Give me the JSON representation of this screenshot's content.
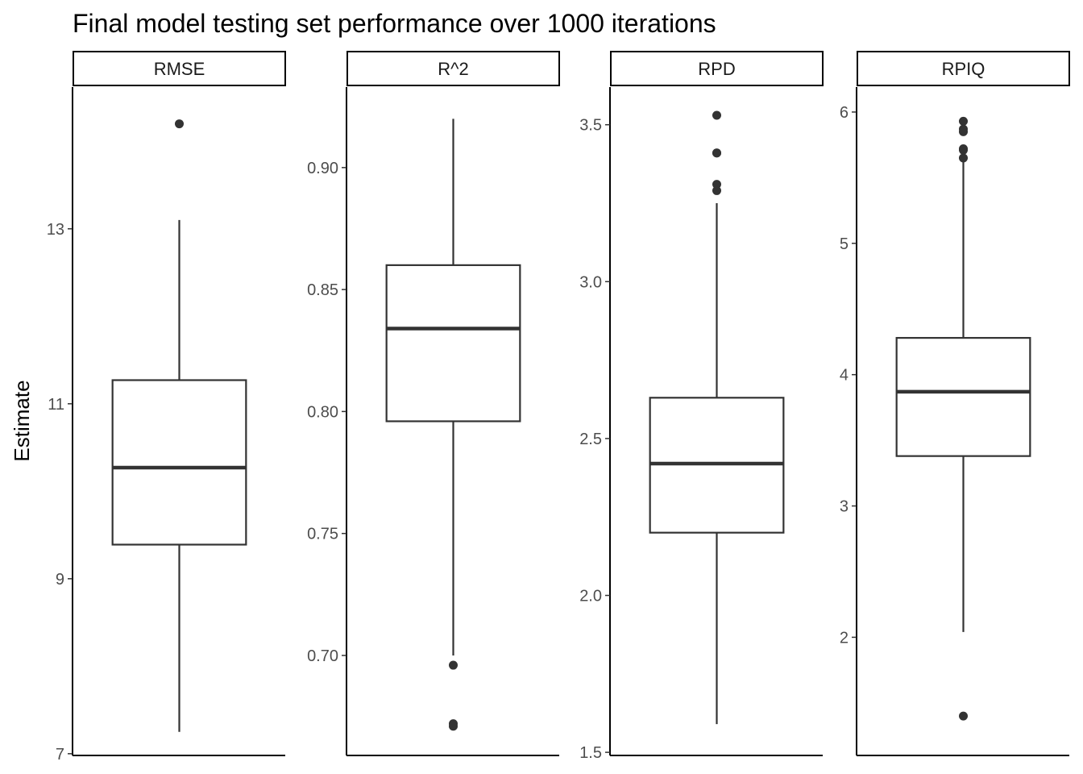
{
  "chart_data": {
    "type": "boxplot",
    "title": "Final model testing set performance over 1000 iterations",
    "ylabel": "Estimate",
    "xlabel": "",
    "grid": false,
    "legend": "none",
    "colors": {
      "box_stroke": "#333333",
      "outlier": "#333333",
      "axis": "#000000",
      "tick_label": "#4d4d4d"
    },
    "facets": [
      {
        "name": "RMSE",
        "ylim": [
          6.98,
          14.62
        ],
        "ticks": [
          7,
          9,
          11,
          13
        ],
        "tick_labels": [
          "7",
          "9",
          "11",
          "13"
        ],
        "whisker_low": 7.25,
        "q1": 9.39,
        "median": 10.27,
        "q3": 11.27,
        "whisker_high": 13.1,
        "outliers": [
          14.2
        ]
      },
      {
        "name": "R^2",
        "ylim": [
          0.659,
          0.933
        ],
        "ticks": [
          0.7,
          0.75,
          0.8,
          0.85,
          0.9
        ],
        "tick_labels": [
          "0.70",
          "0.75",
          "0.80",
          "0.85",
          "0.90"
        ],
        "whisker_low": 0.7,
        "q1": 0.796,
        "median": 0.834,
        "q3": 0.86,
        "whisker_high": 0.92,
        "outliers": [
          0.696,
          0.672,
          0.671
        ]
      },
      {
        "name": "RPD",
        "ylim": [
          1.49,
          3.62
        ],
        "ticks": [
          1.5,
          2.0,
          2.5,
          3.0,
          3.5
        ],
        "tick_labels": [
          "1.5",
          "2.0",
          "2.5",
          "3.0",
          "3.5"
        ],
        "whisker_low": 1.59,
        "q1": 2.2,
        "median": 2.42,
        "q3": 2.63,
        "whisker_high": 3.25,
        "outliers": [
          3.29,
          3.31,
          3.41,
          3.41,
          3.53
        ]
      },
      {
        "name": "RPIQ",
        "ylim": [
          1.1,
          6.19
        ],
        "ticks": [
          2,
          3,
          4,
          5,
          6
        ],
        "tick_labels": [
          "2",
          "3",
          "4",
          "5",
          "6"
        ],
        "whisker_low": 2.04,
        "q1": 3.38,
        "median": 3.87,
        "q3": 4.28,
        "whisker_high": 5.62,
        "outliers": [
          5.65,
          5.71,
          5.72,
          5.85,
          5.87,
          5.93,
          1.4
        ]
      }
    ]
  }
}
